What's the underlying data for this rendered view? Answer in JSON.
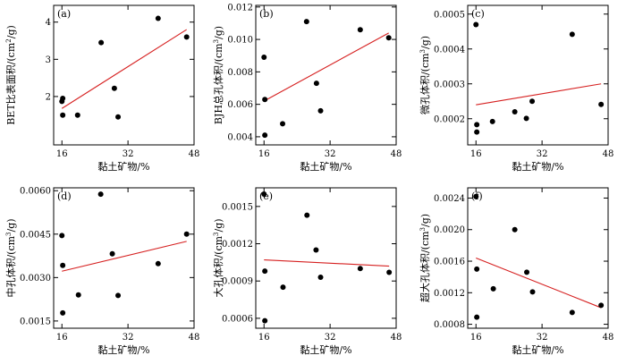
{
  "chart_data": [
    {
      "type": "scatter",
      "panel_label": "(a)",
      "xlabel": "黏土矿物/%",
      "ylabel": "BET比表面积/(cm",
      "ylabel_sup": "2",
      "ylabel_end": "/g)",
      "xlim": [
        14,
        48
      ],
      "ylim": [
        0.7,
        4.45
      ],
      "xticks": [
        16,
        32,
        48
      ],
      "xtick_labels": [
        "16",
        "32",
        "48"
      ],
      "yticks": [
        2,
        3,
        4
      ],
      "ytick_labels": [
        "2",
        "3",
        "4"
      ],
      "points": [
        [
          16,
          1.87
        ],
        [
          16.2,
          1.95
        ],
        [
          16.2,
          1.5
        ],
        [
          19.8,
          1.5
        ],
        [
          25.5,
          3.45
        ],
        [
          28.7,
          2.22
        ],
        [
          29.6,
          1.45
        ],
        [
          39.3,
          4.1
        ],
        [
          46.2,
          3.6
        ]
      ],
      "trendline": [
        [
          16,
          1.68
        ],
        [
          46.2,
          3.8
        ]
      ]
    },
    {
      "type": "scatter",
      "panel_label": "(b)",
      "xlabel": "黏土矿物/%",
      "ylabel": "BJH总孔体积/(cm",
      "ylabel_sup": "3",
      "ylabel_end": "/g)",
      "xlim": [
        14,
        48
      ],
      "ylim": [
        0.0035,
        0.0121
      ],
      "xticks": [
        16,
        32,
        48
      ],
      "xtick_labels": [
        "16",
        "32",
        "48"
      ],
      "yticks": [
        0.004,
        0.006,
        0.008,
        0.01,
        0.012
      ],
      "ytick_labels": [
        "0.004",
        "0.006",
        "0.008",
        "0.010",
        "0.012"
      ],
      "points": [
        [
          16,
          0.0089
        ],
        [
          16.2,
          0.0063
        ],
        [
          16.2,
          0.0041
        ],
        [
          20.5,
          0.0048
        ],
        [
          26.3,
          0.0111
        ],
        [
          28.7,
          0.0073
        ],
        [
          29.7,
          0.0056
        ],
        [
          39.3,
          0.0106
        ],
        [
          46.2,
          0.0101
        ]
      ],
      "trendline": [
        [
          16,
          0.0062
        ],
        [
          46.2,
          0.0104
        ]
      ]
    },
    {
      "type": "scatter",
      "panel_label": "(c)",
      "xlabel": "黏土矿物/%",
      "ylabel": "微孔体积/(cm",
      "ylabel_sup": "3",
      "ylabel_end": "/g)",
      "xlim": [
        14,
        48
      ],
      "ylim": [
        0.000125,
        0.000525
      ],
      "xticks": [
        16,
        32,
        48
      ],
      "xtick_labels": [
        "16",
        "32",
        "48"
      ],
      "yticks": [
        0.0002,
        0.0003,
        0.0004,
        0.0005
      ],
      "ytick_labels": [
        "0.0002",
        "0.0003",
        "0.0004",
        "0.0005"
      ],
      "points": [
        [
          16,
          0.00047
        ],
        [
          16.2,
          0.000183
        ],
        [
          16.2,
          0.000162
        ],
        [
          20,
          0.000192
        ],
        [
          25.4,
          0.00022
        ],
        [
          28.2,
          0.000201
        ],
        [
          29.6,
          0.00025
        ],
        [
          39.3,
          0.000442
        ],
        [
          46.3,
          0.000241
        ]
      ],
      "trendline": [
        [
          16,
          0.00024
        ],
        [
          46.3,
          0.0003
        ]
      ]
    },
    {
      "type": "scatter",
      "panel_label": "(d)",
      "xlabel": "黏土矿物/%",
      "ylabel": "中孔体积/(cm",
      "ylabel_sup": "3",
      "ylabel_end": "/g)",
      "xlim": [
        14,
        48
      ],
      "ylim": [
        0.00125,
        0.0061
      ],
      "xticks": [
        16,
        32,
        48
      ],
      "xtick_labels": [
        "16",
        "32",
        "48"
      ],
      "yticks": [
        0.0015,
        0.003,
        0.0045,
        0.006
      ],
      "ytick_labels": [
        "0.0015",
        "0.0030",
        "0.0045",
        "0.0060"
      ],
      "points": [
        [
          16,
          0.00445
        ],
        [
          16.2,
          0.00342
        ],
        [
          16.2,
          0.00178
        ],
        [
          20,
          0.0024
        ],
        [
          25.4,
          0.00588
        ],
        [
          28.2,
          0.00382
        ],
        [
          29.6,
          0.00238
        ],
        [
          39.3,
          0.00348
        ],
        [
          46.2,
          0.0045
        ]
      ],
      "trendline": [
        [
          16,
          0.00322
        ],
        [
          46.2,
          0.00425
        ]
      ]
    },
    {
      "type": "scatter",
      "panel_label": "(e)",
      "xlabel": "黏土矿物/%",
      "ylabel": "大孔体积/(cm",
      "ylabel_sup": "3",
      "ylabel_end": "/g)",
      "xlim": [
        14,
        48
      ],
      "ylim": [
        0.00052,
        0.00165
      ],
      "xticks": [
        16,
        32,
        48
      ],
      "xtick_labels": [
        "16",
        "32",
        "48"
      ],
      "yticks": [
        0.0006,
        0.0009,
        0.0012,
        0.0015
      ],
      "ytick_labels": [
        "0.0006",
        "0.0009",
        "0.0012",
        "0.0015"
      ],
      "points": [
        [
          16,
          0.0016
        ],
        [
          16.2,
          0.00098
        ],
        [
          16.2,
          0.00058
        ],
        [
          20.6,
          0.00085
        ],
        [
          26.4,
          0.00143
        ],
        [
          28.6,
          0.00115
        ],
        [
          29.7,
          0.00093
        ],
        [
          39.3,
          0.001
        ],
        [
          46.3,
          0.00097
        ]
      ],
      "trendline": [
        [
          16,
          0.00107
        ],
        [
          46.3,
          0.00102
        ]
      ]
    },
    {
      "type": "scatter",
      "panel_label": "(f)",
      "xlabel": "黏土矿物/%",
      "ylabel": "超大孔体积/(cm",
      "ylabel_sup": "3",
      "ylabel_end": "/g)",
      "xlim": [
        14,
        48
      ],
      "ylim": [
        0.00075,
        0.00253
      ],
      "xticks": [
        16,
        32,
        48
      ],
      "xtick_labels": [
        "16",
        "32",
        "48"
      ],
      "yticks": [
        0.0008,
        0.0012,
        0.0016,
        0.002,
        0.0024
      ],
      "ytick_labels": [
        "0.0008",
        "0.0012",
        "0.0016",
        "0.0020",
        "0.0024"
      ],
      "points": [
        [
          16,
          0.00242
        ],
        [
          16.2,
          0.0015
        ],
        [
          16.2,
          0.00089
        ],
        [
          20.2,
          0.00125
        ],
        [
          25.4,
          0.002
        ],
        [
          28.3,
          0.00146
        ],
        [
          29.7,
          0.00121
        ],
        [
          39.3,
          0.00095
        ],
        [
          46.3,
          0.00104
        ]
      ],
      "trendline": [
        [
          16,
          0.00164
        ],
        [
          46.3,
          0.00101
        ]
      ]
    }
  ]
}
